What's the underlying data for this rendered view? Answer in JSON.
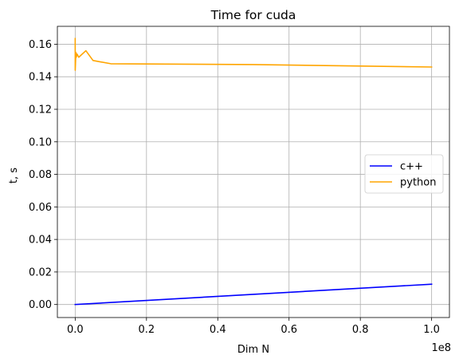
{
  "chart_data": {
    "type": "line",
    "title": "Time for cuda",
    "xlabel": "Dim N",
    "ylabel": "t, s",
    "x_offset_label": "1e8",
    "xlim": [
      -0.05,
      1.05
    ],
    "ylim": [
      -0.008,
      0.171
    ],
    "x_tick_values": [
      0.0,
      0.2,
      0.4,
      0.6,
      0.8,
      1.0
    ],
    "x_tick_labels": [
      "0.0",
      "0.2",
      "0.4",
      "0.6",
      "0.8",
      "1.0"
    ],
    "y_tick_values": [
      0.0,
      0.02,
      0.04,
      0.06,
      0.08,
      0.1,
      0.12,
      0.14,
      0.16
    ],
    "y_tick_labels": [
      "0.00",
      "0.02",
      "0.04",
      "0.06",
      "0.08",
      "0.10",
      "0.12",
      "0.14",
      "0.16"
    ],
    "grid": true,
    "legend_position": "center-right",
    "series": [
      {
        "name": "c++",
        "color": "#0000ff",
        "x": [
          0.0,
          1.0
        ],
        "y": [
          0.0,
          0.0125
        ]
      },
      {
        "name": "python",
        "color": "#ffa500",
        "x": [
          0.0,
          0.0001,
          0.002,
          0.003,
          0.005,
          0.01,
          0.03,
          0.05,
          0.1,
          0.5,
          1.0
        ],
        "y": [
          0.1635,
          0.144,
          0.155,
          0.152,
          0.154,
          0.152,
          0.156,
          0.15,
          0.148,
          0.1475,
          0.146
        ]
      }
    ]
  }
}
